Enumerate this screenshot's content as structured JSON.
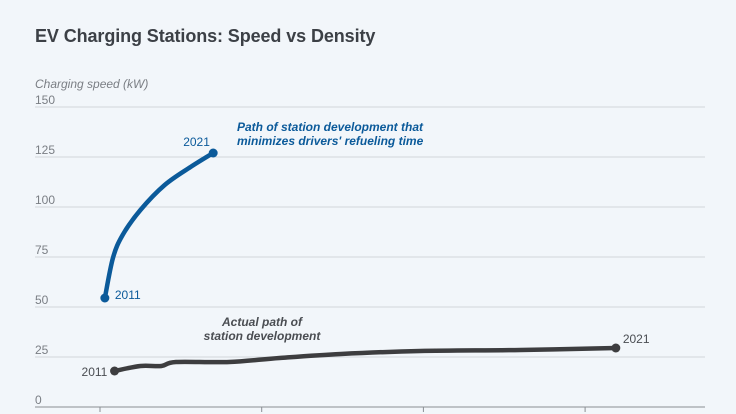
{
  "chart_data": {
    "type": "line",
    "title": "EV Charging Stations: Speed vs Density",
    "xlabel": "",
    "ylabel": "Charging speed (kW)",
    "ylim": [
      0,
      150
    ],
    "xlim": [
      0,
      3.75
    ],
    "yticks": [
      0,
      25,
      50,
      75,
      100,
      125,
      150
    ],
    "ytick_labels": [
      "0",
      "25",
      "50",
      "75",
      "100",
      "125",
      "150"
    ],
    "xticks": [
      0,
      1,
      2,
      3
    ],
    "grid": true,
    "series": [
      {
        "name": "Path of station development that minimizes drivers' refueling time",
        "color": "#0b5a9a",
        "x": [
          0.03,
          0.08,
          0.14,
          0.25,
          0.4,
          0.56,
          0.7
        ],
        "y": [
          54.5,
          74.5,
          86,
          98.5,
          111,
          120,
          127
        ],
        "start_label": "2011",
        "end_label": "2021",
        "annotation": [
          "Path of station development that",
          "minimizes drivers' refueling time"
        ]
      },
      {
        "name": "Actual path of station development",
        "color": "#3d3d3f",
        "x": [
          0.09,
          0.25,
          0.38,
          0.47,
          0.8,
          1.11,
          1.49,
          1.98,
          2.6,
          3.19
        ],
        "y": [
          18,
          20.5,
          20.5,
          22.5,
          22.5,
          24.5,
          26.5,
          28,
          28.5,
          29.5
        ],
        "start_label": "2011",
        "end_label": "2021",
        "annotation": [
          "Actual path of",
          "station development"
        ]
      }
    ]
  }
}
